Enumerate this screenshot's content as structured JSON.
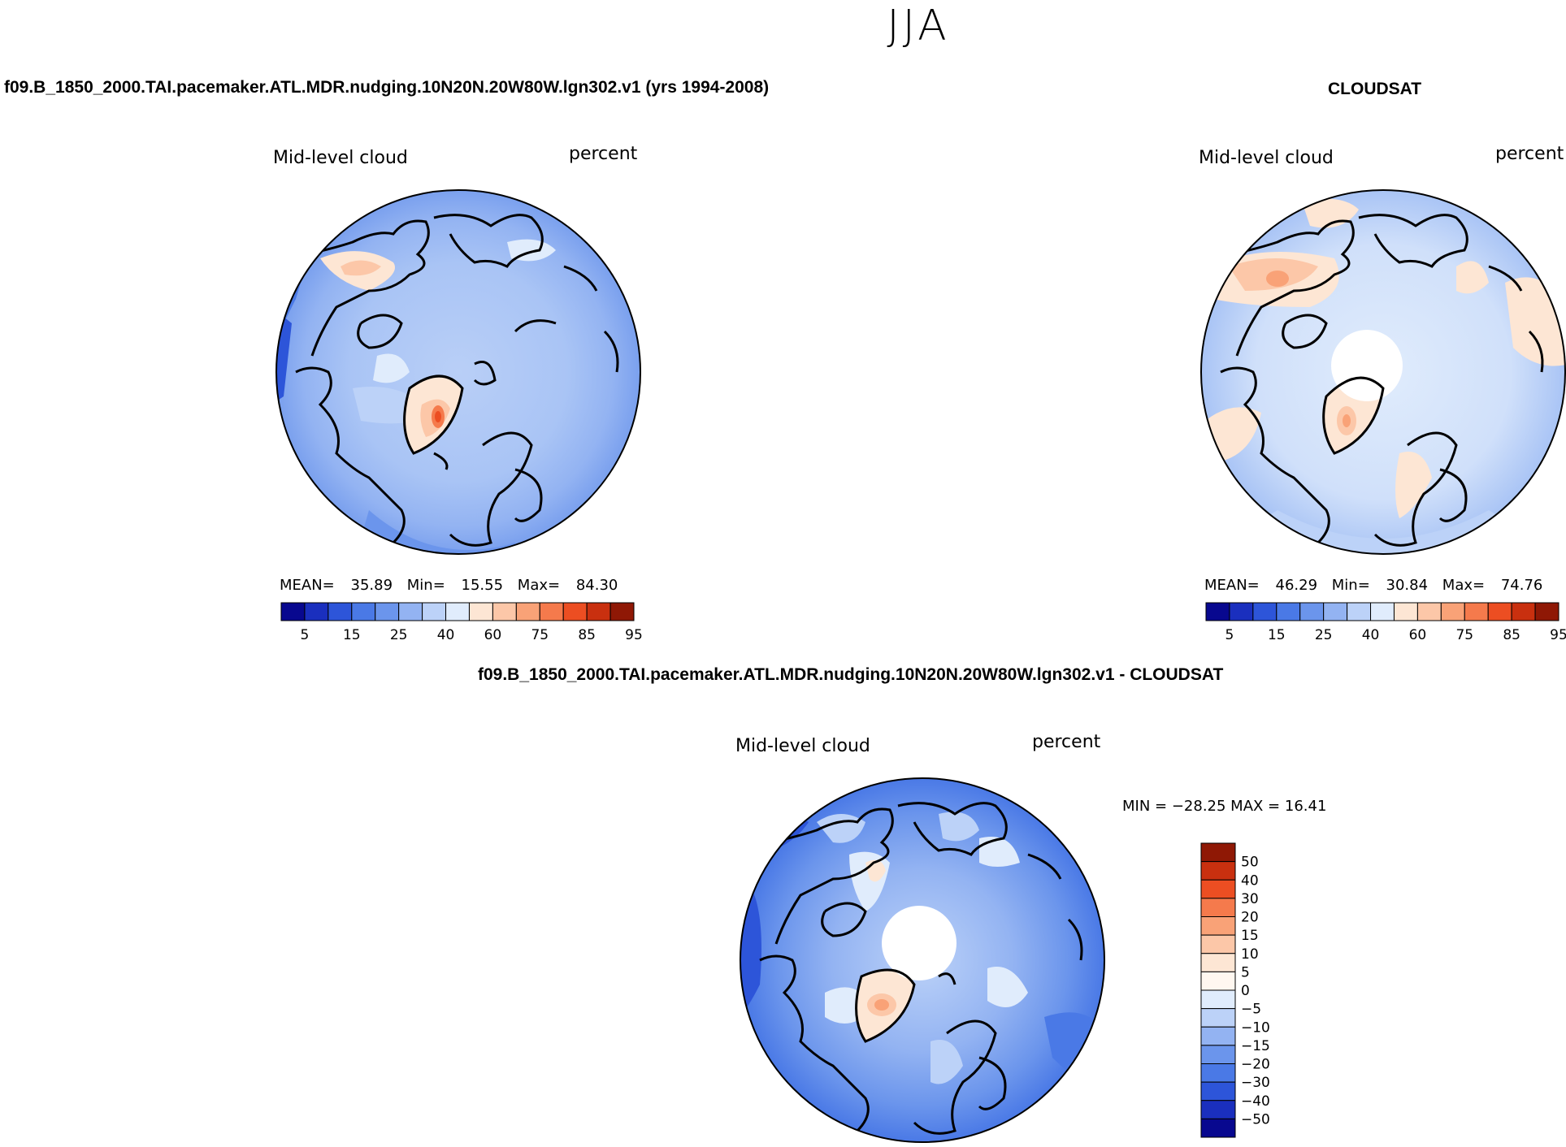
{
  "season": "JJA",
  "model_header": "f09.B_1850_2000.TAI.pacemaker.ATL.MDR.nudging.10N20N.20W80W.lgn302.v1 (yrs 1994-2008)",
  "obs_header": "CLOUDSAT",
  "diff_header": "f09.B_1850_2000.TAI.pacemaker.ATL.MDR.nudging.10N20N.20W80W.lgn302.v1 - CLOUDSAT",
  "panels": {
    "model": {
      "variable": "Mid-level cloud",
      "units": "percent",
      "mean_label": "MEAN=",
      "mean": "35.89",
      "min_label": "Min=",
      "min": "15.55",
      "max_label": "Max=",
      "max": "84.30"
    },
    "obs": {
      "variable": "Mid-level cloud",
      "units": "percent",
      "mean_label": "MEAN=",
      "mean": "46.29",
      "min_label": "Min=",
      "min": "30.84",
      "max_label": "Max=",
      "max": "74.76"
    },
    "diff": {
      "variable": "Mid-level cloud",
      "units": "percent",
      "minmax_text": "MIN = −28.25 MAX =  16.41"
    }
  },
  "colorbar_abs": {
    "labels": [
      "5",
      "15",
      "25",
      "40",
      "60",
      "75",
      "85",
      "95"
    ],
    "colors": [
      "#08088f",
      "#1a2fbe",
      "#2d55d9",
      "#4a79e6",
      "#6b95ec",
      "#93b3f2",
      "#bcd2f8",
      "#e0ecfc",
      "#fde6d4",
      "#fcc7a8",
      "#f9a277",
      "#f57a4c",
      "#ec4e22",
      "#c9300f",
      "#8f1805"
    ]
  },
  "colorbar_diff": {
    "labels": [
      "50",
      "40",
      "30",
      "20",
      "15",
      "10",
      "5",
      "0",
      "−5",
      "−10",
      "−15",
      "−20",
      "−30",
      "−40",
      "−50"
    ],
    "colors": [
      "#8f1805",
      "#c9300f",
      "#ec4e22",
      "#f57a4c",
      "#f9a277",
      "#fcc7a8",
      "#fde6d4",
      "#fff7f0",
      "#e0ecfc",
      "#bcd2f8",
      "#93b3f2",
      "#6b95ec",
      "#4a79e6",
      "#2d55d9",
      "#1a2fbe",
      "#08088f"
    ]
  }
}
